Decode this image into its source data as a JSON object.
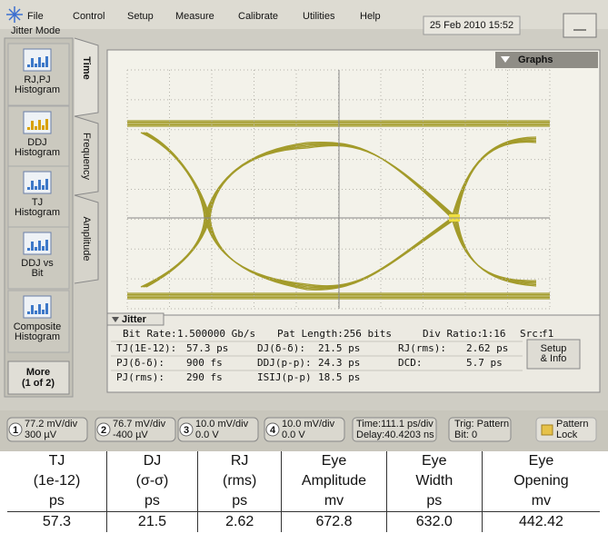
{
  "menu": {
    "items": [
      "File",
      "Control",
      "Setup",
      "Measure",
      "Calibrate",
      "Utilities",
      "Help"
    ],
    "datetime": "25 Feb 2010 15:52",
    "mode": "Jitter Mode"
  },
  "sidebar": {
    "buttons": [
      [
        "RJ,PJ",
        "Histogram"
      ],
      [
        "DDJ",
        "Histogram"
      ],
      [
        "TJ",
        "Histogram"
      ],
      [
        "DDJ vs",
        "Bit"
      ],
      [
        "Composite",
        "Histogram"
      ]
    ],
    "more": [
      "More",
      "(1 of 2)"
    ]
  },
  "tabs": [
    "Time",
    "Frequency",
    "Amplitude"
  ],
  "graph": {
    "menu": "Graphs",
    "panel": "Jitter"
  },
  "info": {
    "header": [
      [
        "Bit Rate:",
        "1.500000 Gb/s"
      ],
      [
        "Pat Length:",
        "256 bits"
      ],
      [
        "Div Ratio:",
        "1:16"
      ],
      [
        "Src:",
        "f1"
      ]
    ],
    "rows": [
      [
        [
          "TJ(1E-12):",
          "57.3 ps"
        ],
        [
          "DJ(δ-δ):",
          "21.5 ps"
        ],
        [
          "RJ(rms):",
          "2.62 ps"
        ]
      ],
      [
        [
          "PJ(δ-δ):",
          "900 fs"
        ],
        [
          "DDJ(p-p):",
          "24.3 ps"
        ],
        [
          "DCD:",
          "5.7 ps"
        ]
      ],
      [
        [
          "PJ(rms):",
          "290 fs"
        ],
        [
          "ISIJ(p-p)",
          "18.5 ps"
        ]
      ]
    ],
    "button": [
      "Setup",
      "& Info"
    ]
  },
  "status": {
    "channels": [
      {
        "num": "1",
        "scale": "77.2 mV/div",
        "offset": "300 µV"
      },
      {
        "num": "2",
        "scale": "76.7 mV/div",
        "offset": "-400 µV"
      },
      {
        "num": "3",
        "scale": "10.0 mV/div",
        "offset": "0.0 V"
      },
      {
        "num": "4",
        "scale": "10.0 mV/div",
        "offset": "0.0 V"
      }
    ],
    "time": [
      "Time:111.1 ps/div",
      "Delay:40.4203 ns"
    ],
    "trigger": [
      "Trig: Pattern",
      "Bit: 0"
    ],
    "lock": [
      "Pattern",
      "Lock"
    ]
  },
  "table": {
    "header": [
      [
        "TJ",
        "(1e-12)",
        "ps"
      ],
      [
        "DJ",
        "(σ-σ)",
        "ps"
      ],
      [
        "RJ",
        "(rms)",
        "ps"
      ],
      [
        "Eye",
        "Amplitude",
        "mv"
      ],
      [
        "Eye",
        "Width",
        "ps"
      ],
      [
        "Eye",
        "Opening",
        "mv"
      ]
    ],
    "rows": [
      [
        "57.3",
        "21.5",
        "2.62",
        "672.8",
        "632.0",
        "442.42"
      ]
    ]
  }
}
